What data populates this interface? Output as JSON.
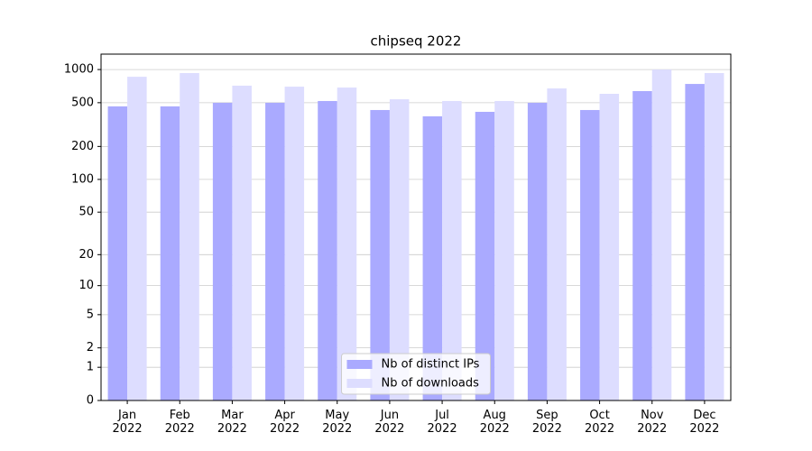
{
  "chart_data": {
    "type": "bar",
    "title": "chipseq 2022",
    "categories": [
      "Jan\n2022",
      "Feb\n2022",
      "Mar\n2022",
      "Apr\n2022",
      "May\n2022",
      "Jun\n2022",
      "Jul\n2022",
      "Aug\n2022",
      "Sep\n2022",
      "Oct\n2022",
      "Nov\n2022",
      "Dec\n2022"
    ],
    "series": [
      {
        "name": "Nb of distinct IPs",
        "color": "#aaaaff",
        "values": [
          463,
          463,
          499,
          499,
          518,
          429,
          376,
          413,
          499,
          429,
          637,
          740
        ]
      },
      {
        "name": "Nb of downloads",
        "color": "#ddddff",
        "values": [
          860,
          929,
          714,
          699,
          686,
          537,
          518,
          518,
          674,
          602,
          1000,
          929
        ]
      }
    ],
    "yscale": "log1p",
    "ylim": [
      0,
      1380
    ],
    "yticks": [
      0,
      1,
      2,
      5,
      10,
      20,
      50,
      100,
      200,
      500,
      1000
    ],
    "grid": true,
    "legend": "lower center"
  }
}
